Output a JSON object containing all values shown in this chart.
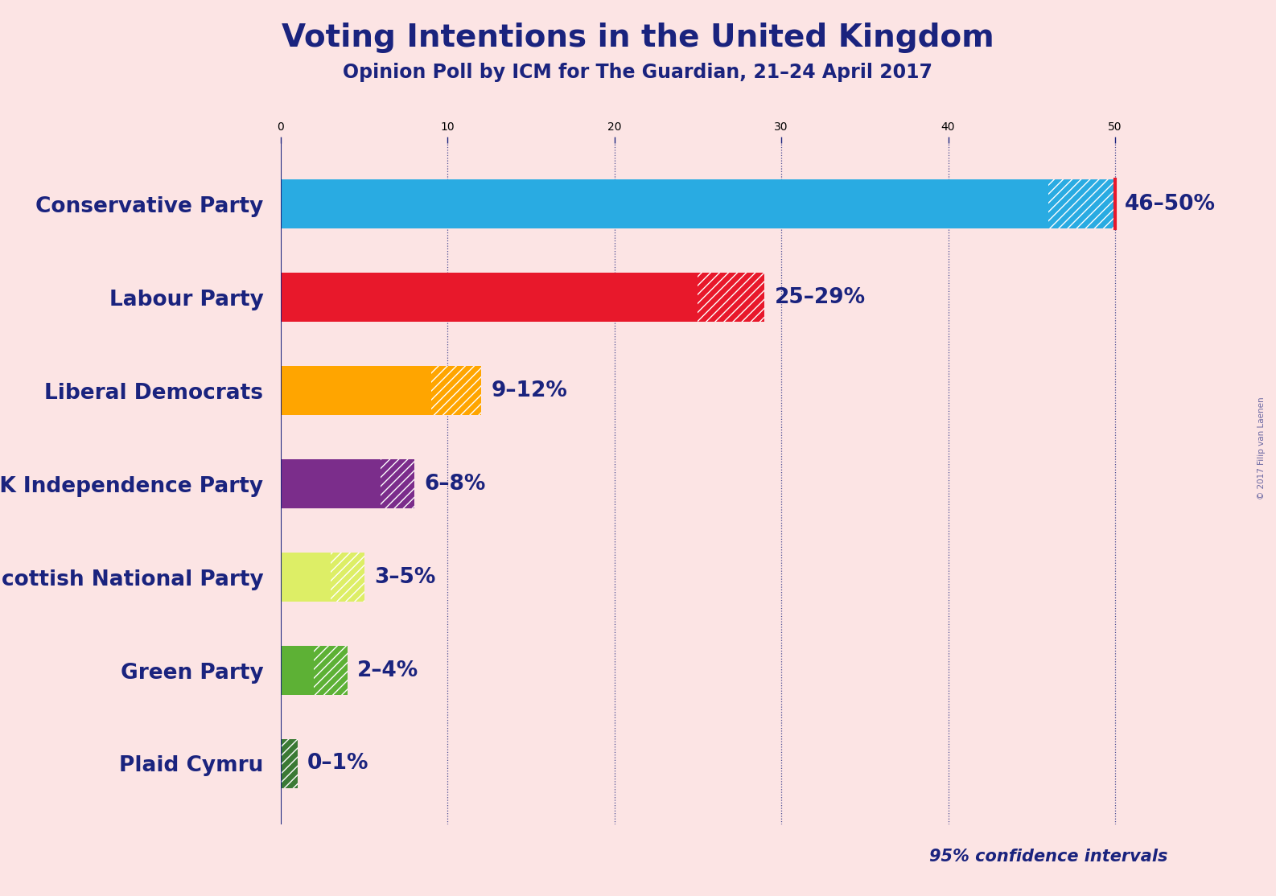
{
  "title": "Voting Intentions in the United Kingdom",
  "subtitle": "Opinion Poll by ICM for The Guardian, 21–24 April 2017",
  "watermark": "© 2017 Filip van Laenen",
  "background_color": "#fce4e4",
  "title_color": "#1a237e",
  "subtitle_color": "#1a237e",
  "text_color": "#1a237e",
  "parties": [
    "Conservative Party",
    "Labour Party",
    "Liberal Democrats",
    "UK Independence Party",
    "Scottish National Party",
    "Green Party",
    "Plaid Cymru"
  ],
  "low_values": [
    46,
    25,
    9,
    6,
    3,
    2,
    0
  ],
  "high_values": [
    50,
    29,
    12,
    8,
    5,
    4,
    1
  ],
  "labels": [
    "46–50%",
    "25–29%",
    "9–12%",
    "6–8%",
    "3–5%",
    "2–4%",
    "0–1%"
  ],
  "colors": [
    "#29ABE2",
    "#E8182B",
    "#FFA500",
    "#7B2D8B",
    "#DDEE66",
    "#5DB135",
    "#3B7A35"
  ],
  "axis_color": "#1a237e",
  "grid_color": "#1a237e",
  "confidence_text": "95% confidence intervals",
  "xlim_max": 52,
  "bar_height": 0.52
}
